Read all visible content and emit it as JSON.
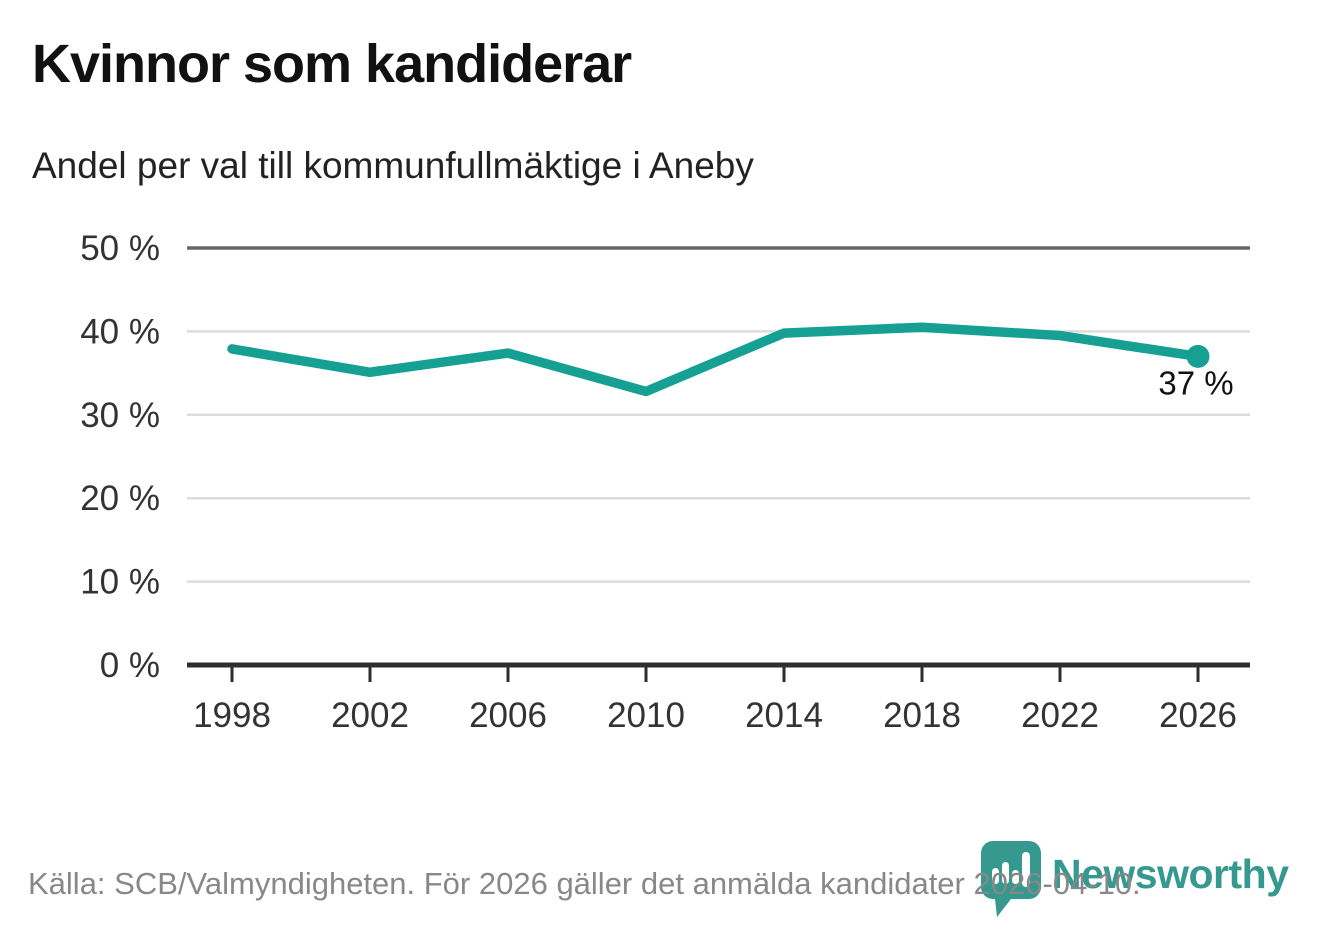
{
  "header": {
    "title": "Kvinnor som kandiderar",
    "subtitle": "Andel per val till kommunfullmäktige i Aneby"
  },
  "footer": {
    "source": "Källa: SCB/Valmyndigheten. För 2026 gäller det anmälda kandidater 2026-04-10.",
    "brand": "Newsworthy"
  },
  "colors": {
    "line": "#16a094",
    "point": "#16a094",
    "grid": "#dcdcdc",
    "grid_top": "#666666",
    "axis": "#2e2e2e",
    "tick_label": "#333333",
    "annotation": "#111111",
    "title": "#111111",
    "subtitle": "#222222",
    "source": "#888888",
    "brand": "#35998f"
  },
  "chart_data": {
    "type": "line",
    "title": "Kvinnor som kandiderar",
    "subtitle": "Andel per val till kommunfullmäktige i Aneby",
    "x": [
      1998,
      2002,
      2006,
      2010,
      2014,
      2018,
      2022,
      2026
    ],
    "xtick_labels": [
      "1998",
      "2002",
      "2006",
      "2010",
      "2014",
      "2018",
      "2022",
      "2026"
    ],
    "values": [
      37.9,
      35.1,
      37.4,
      32.8,
      39.8,
      40.5,
      39.5,
      37
    ],
    "yticks": [
      0,
      10,
      20,
      30,
      40,
      50
    ],
    "ytick_labels": [
      "0 %",
      "10 %",
      "20 %",
      "30 %",
      "40 %",
      "50 %"
    ],
    "ylim": [
      0,
      50
    ],
    "xlabel": "",
    "ylabel": "",
    "grid": true,
    "legend": false,
    "end_label": "37 %"
  }
}
